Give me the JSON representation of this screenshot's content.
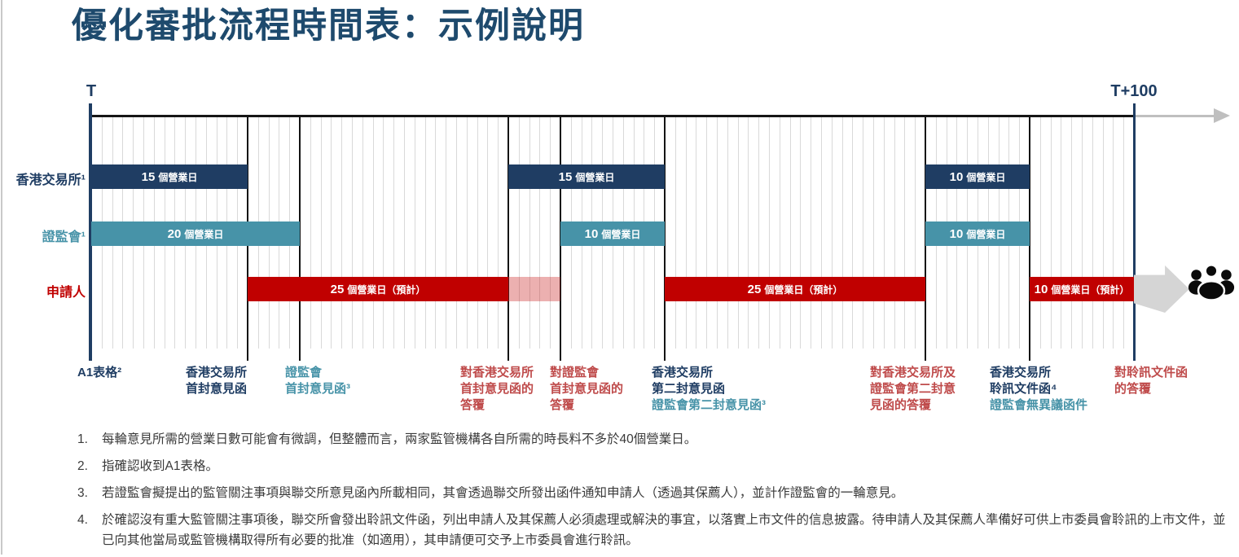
{
  "title": "優化審批流程時間表：示例說明",
  "colors": {
    "navy": "#1f3d63",
    "teal": "#4793a8",
    "red": "#c00000",
    "red_light": "rgba(200,30,30,0.35)",
    "label_red": "#bf4b4b",
    "title": "#1e4a6d",
    "grid": "#d9d9d9",
    "line": "#141414",
    "axis_arrow": "#bfbfbf",
    "block_arrow": "#d5d5d5",
    "footnote_text": "#3a3a3a",
    "icon": "#0a0a0a"
  },
  "chart_data": {
    "type": "gantt",
    "title": "優化審批流程時間表：示例說明",
    "axis": {
      "start": "T",
      "end": "T+100",
      "days": 100,
      "unit": "個營業日",
      "grid": "daily"
    },
    "rows": [
      {
        "name": "香港交易所¹",
        "color_key": "navy",
        "bars": [
          {
            "start": 0,
            "end": 15,
            "num": "15",
            "unit": "個營業日"
          },
          {
            "start": 40,
            "end": 55,
            "num": "15",
            "unit": "個營業日"
          },
          {
            "start": 80,
            "end": 90,
            "num": "10",
            "unit": "個營業日"
          }
        ]
      },
      {
        "name": "證監會¹",
        "color_key": "teal",
        "bars": [
          {
            "start": 0,
            "end": 20,
            "num": "20",
            "unit": "個營業日"
          },
          {
            "start": 45,
            "end": 55,
            "num": "10",
            "unit": "個營業日"
          },
          {
            "start": 80,
            "end": 90,
            "num": "10",
            "unit": "個營業日"
          }
        ]
      },
      {
        "name": "申請人",
        "color_key": "red",
        "bars": [
          {
            "start": 15,
            "end": 40,
            "num": "25",
            "unit": "個營業日（預計）"
          },
          {
            "start": 40,
            "end": 45,
            "num": "",
            "unit": "",
            "variant": "light"
          },
          {
            "start": 55,
            "end": 80,
            "num": "25",
            "unit": "個營業日（預計）"
          },
          {
            "start": 90,
            "end": 100,
            "num": "10",
            "unit": "個營業日（預計）"
          }
        ]
      }
    ],
    "milestones": [
      {
        "day": 0,
        "lines": [
          {
            "t": "A1表格²",
            "c": "navy"
          }
        ]
      },
      {
        "day": 15,
        "lines": [
          {
            "t": "香港交易所",
            "c": "navy"
          },
          {
            "t": "首封意見函",
            "c": "navy"
          }
        ]
      },
      {
        "day": 20,
        "lines": [
          {
            "t": "證監會",
            "c": "teal"
          },
          {
            "t": "首封意見函³",
            "c": "teal"
          }
        ]
      },
      {
        "day": 40,
        "lines": [
          {
            "t": "對香港交易所",
            "c": "red"
          },
          {
            "t": "首封意見函的",
            "c": "red"
          },
          {
            "t": "答覆",
            "c": "red"
          }
        ]
      },
      {
        "day": 45,
        "lines": [
          {
            "t": "對證監會",
            "c": "red"
          },
          {
            "t": "首封意見函的",
            "c": "red"
          },
          {
            "t": "答覆",
            "c": "red"
          }
        ]
      },
      {
        "day": 55,
        "lines": [
          {
            "t": "香港交易所",
            "c": "navy"
          },
          {
            "t": "第二封意見函",
            "c": "navy"
          },
          {
            "t": "證監會第二封意見函³",
            "c": "teal"
          }
        ]
      },
      {
        "day": 80,
        "lines": [
          {
            "t": "對香港交易所及",
            "c": "red"
          },
          {
            "t": "證監會第二封意",
            "c": "red"
          },
          {
            "t": "見函的答覆",
            "c": "red"
          }
        ]
      },
      {
        "day": 90,
        "lines": [
          {
            "t": "香港交易所",
            "c": "navy"
          },
          {
            "t": "聆訊文件函⁴",
            "c": "navy"
          },
          {
            "t": "證監會無異議函件",
            "c": "teal"
          }
        ]
      },
      {
        "day": 100,
        "lines": [
          {
            "t": "對聆訊文件函",
            "c": "red"
          },
          {
            "t": "的答覆",
            "c": "red"
          }
        ]
      }
    ]
  },
  "footnotes": [
    {
      "num": "1.",
      "text": "每輪意見所需的營業日數可能會有微調，但整體而言，兩家監管機構各自所需的時長料不多於40個營業日。"
    },
    {
      "num": "2.",
      "text": "指確認收到A1表格。"
    },
    {
      "num": "3.",
      "text": "若證監會擬提出的監管關注事項與聯交所意見函內所載相同，其會透過聯交所發出函件通知申請人（透過其保薦人），並計作證監會的一輪意見。"
    },
    {
      "num": "4.",
      "text": "於確認沒有重大監管關注事項後，聯交所會發出聆訊文件函，列出申請人及其保薦人必須處理或解決的事宜，以落實上市文件的信息披露。待申請人及其保薦人準備好可供上市委員會聆訊的上市文件，並已向其他當局或監管機構取得所有必要的批准（如適用），其申請便可交予上市委員會進行聆訊。"
    }
  ]
}
